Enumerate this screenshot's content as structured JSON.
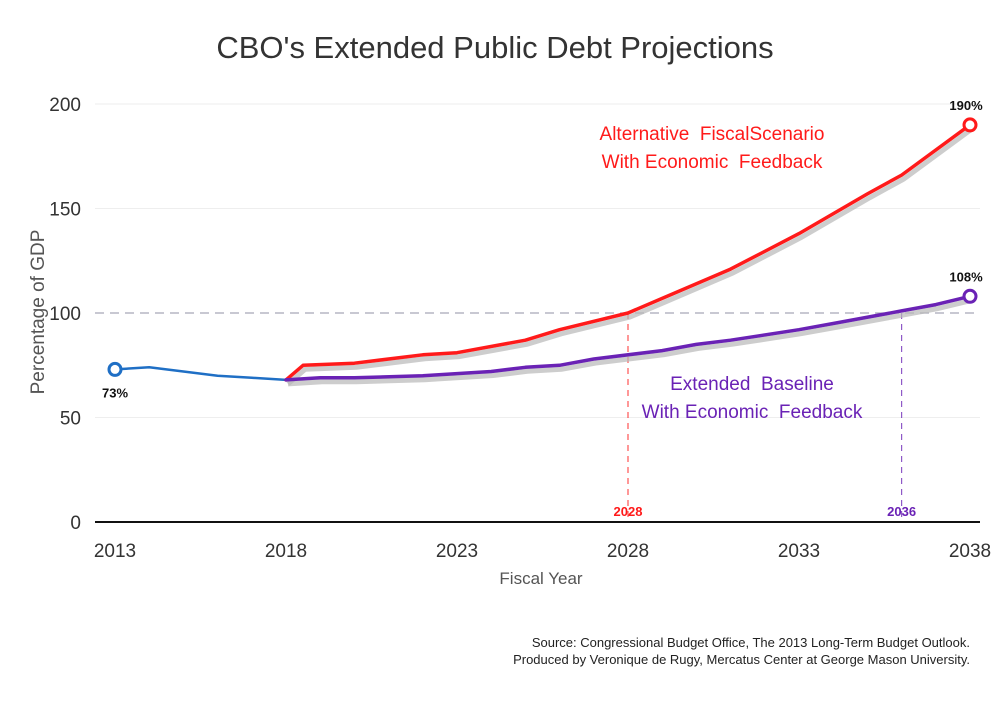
{
  "chart_data": {
    "type": "line",
    "title": "CBO's Extended Public Debt Projections",
    "xlabel": "Fiscal Year",
    "ylabel": "Percentage of GDP",
    "xlim": [
      2013,
      2038
    ],
    "ylim": [
      0,
      200
    ],
    "x_ticks": [
      "2013",
      "2018",
      "2023",
      "2028",
      "2033",
      "2038"
    ],
    "y_ticks": [
      "0",
      "50",
      "100",
      "150",
      "200"
    ],
    "reference_line": {
      "y": 100,
      "style": "dashed"
    },
    "series": [
      {
        "key": "historical",
        "color": "#1f6fc5",
        "points": [
          [
            2013,
            73
          ],
          [
            2014,
            74
          ],
          [
            2015,
            72
          ],
          [
            2016,
            70
          ],
          [
            2017,
            69
          ],
          [
            2018,
            68
          ]
        ],
        "start_label": "73%"
      },
      {
        "key": "alternative",
        "label_lines": [
          "Alternative  FiscalScenario",
          "With Economic  Feedback"
        ],
        "color": "#ff1a1a",
        "points": [
          [
            2018,
            68
          ],
          [
            2018.5,
            75
          ],
          [
            2020,
            76
          ],
          [
            2022,
            80
          ],
          [
            2023,
            81
          ],
          [
            2025,
            87
          ],
          [
            2026,
            92
          ],
          [
            2028,
            100
          ],
          [
            2029,
            107
          ],
          [
            2031,
            121
          ],
          [
            2033,
            138
          ],
          [
            2035,
            157
          ],
          [
            2036,
            166
          ],
          [
            2038,
            190
          ]
        ],
        "end_label": "190%",
        "crossing_year": "2028"
      },
      {
        "key": "baseline",
        "label_lines": [
          "Extended  Baseline",
          "With Economic  Feedback"
        ],
        "color": "#6a22b5",
        "points": [
          [
            2018,
            68
          ],
          [
            2019,
            69
          ],
          [
            2020,
            69
          ],
          [
            2022,
            70
          ],
          [
            2024,
            72
          ],
          [
            2025,
            74
          ],
          [
            2026,
            75
          ],
          [
            2027,
            78
          ],
          [
            2029,
            82
          ],
          [
            2030,
            85
          ],
          [
            2031,
            87
          ],
          [
            2033,
            92
          ],
          [
            2034,
            95
          ],
          [
            2036,
            101
          ],
          [
            2037,
            104
          ],
          [
            2038,
            108
          ]
        ],
        "end_label": "108%",
        "crossing_year": "2036"
      }
    ]
  },
  "source": {
    "line1": "Source: Congressional Budget Office, The 2013 Long-Term Budget Outlook.",
    "line2": "Produced by Veronique de Rugy, Mercatus Center at George Mason University."
  }
}
